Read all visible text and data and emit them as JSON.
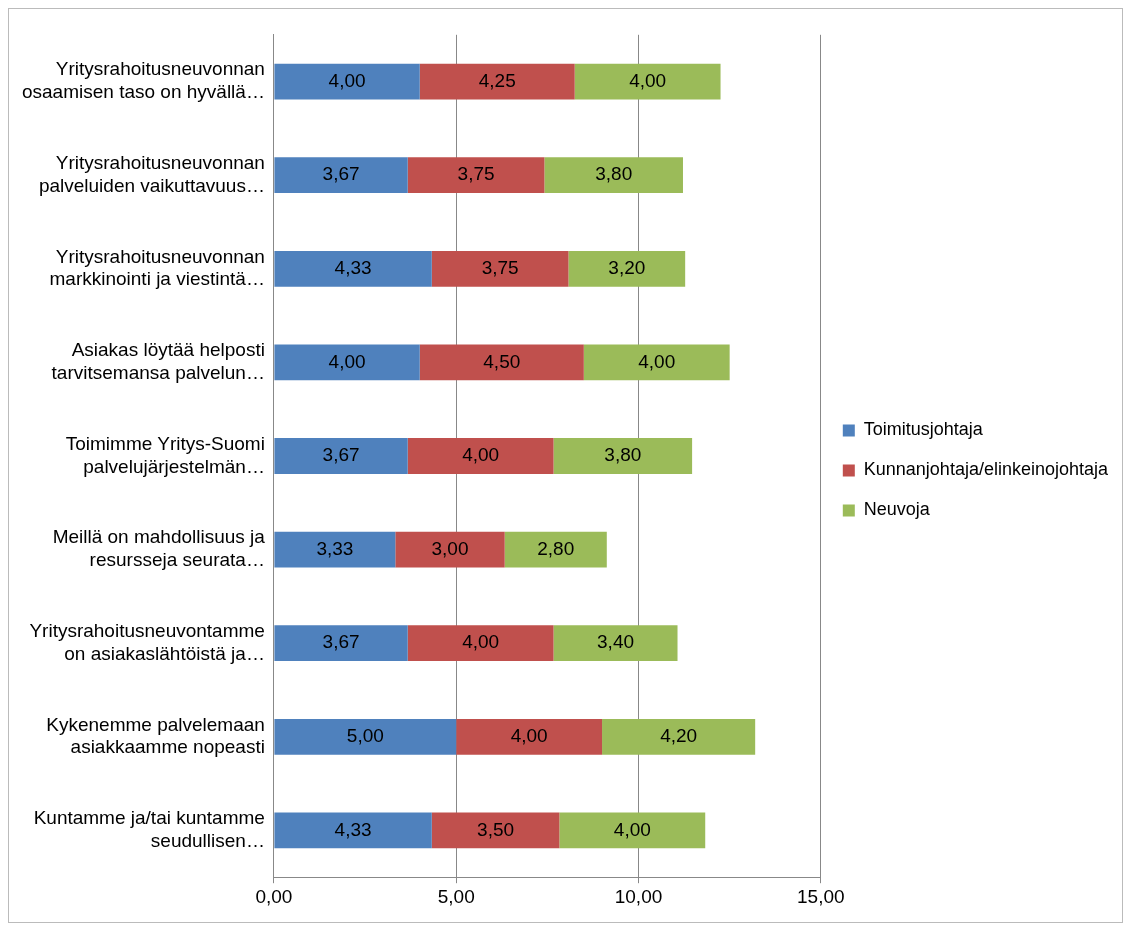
{
  "chart_data": {
    "type": "bar",
    "orientation": "horizontal",
    "stacked": true,
    "categories": [
      "Yritysrahoitusneuvonnan\nosaamisen taso on hyvällä…",
      "Yritysrahoitusneuvonnan\npalveluiden vaikuttavuus…",
      "Yritysrahoitusneuvonnan\nmarkkinointi ja viestintä…",
      "Asiakas löytää helposti\ntarvitsemansa palvelun…",
      "Toimimme Yritys-Suomi\npalvelujärjestelmän…",
      "Meillä on mahdollisuus ja\nresursseja seurata…",
      "Yritysrahoitusneuvontamme\non asiakaslähtöistä ja…",
      "Kykenemme palvelemaan\nasiakkaamme nopeasti",
      "Kuntamme ja/tai kuntamme\nseudullisen…"
    ],
    "series": [
      {
        "name": "Toimitusjohtaja",
        "color": "#4f81bd",
        "values": [
          4.0,
          3.67,
          4.33,
          4.0,
          3.67,
          3.33,
          3.67,
          5.0,
          4.33
        ],
        "value_labels": [
          "4,00",
          "3,67",
          "4,33",
          "4,00",
          "3,67",
          "3,33",
          "3,67",
          "5,00",
          "4,33"
        ]
      },
      {
        "name": "Kunnanjohtaja/elinkeinojohtaja",
        "color": "#c0504d",
        "values": [
          4.25,
          3.75,
          3.75,
          4.5,
          4.0,
          3.0,
          4.0,
          4.0,
          3.5
        ],
        "value_labels": [
          "4,25",
          "3,75",
          "3,75",
          "4,50",
          "4,00",
          "3,00",
          "4,00",
          "4,00",
          "3,50"
        ]
      },
      {
        "name": "Neuvoja",
        "color": "#9bbb59",
        "values": [
          4.0,
          3.8,
          3.2,
          4.0,
          3.8,
          2.8,
          3.4,
          4.2,
          4.0
        ],
        "value_labels": [
          "4,00",
          "3,80",
          "3,20",
          "4,00",
          "3,80",
          "2,80",
          "3,40",
          "4,20",
          "4,00"
        ]
      }
    ],
    "xlim": [
      0,
      15
    ],
    "xticks": [
      {
        "value": 0,
        "label": "0,00"
      },
      {
        "value": 5,
        "label": "5,00"
      },
      {
        "value": 10,
        "label": "10,00"
      },
      {
        "value": 15,
        "label": "15,00"
      }
    ],
    "grid": "x",
    "legend": "right"
  }
}
